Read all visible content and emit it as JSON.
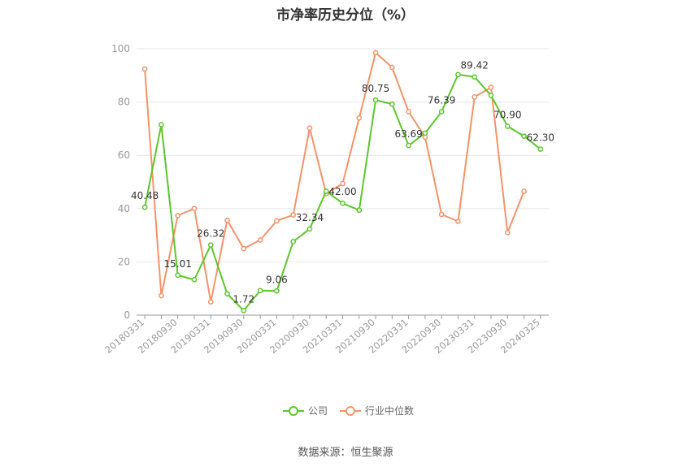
{
  "title": "市净率历史分位（%）",
  "source": "数据来源：恒生聚源",
  "colors": {
    "company": "#5cc72a",
    "industry": "#f5936a",
    "grid": "#e6e6e6",
    "axis": "#999999"
  },
  "chart_data": {
    "type": "line",
    "ylim": [
      0,
      100
    ],
    "yticks": [
      "0",
      "20",
      "40",
      "60",
      "80",
      "100"
    ],
    "x_tick_labels": [
      "20180331",
      "20180930",
      "20190331",
      "20190930",
      "20200331",
      "20200930",
      "20210331",
      "20210930",
      "20220331",
      "20220930",
      "20230331",
      "20230930",
      "20240325"
    ],
    "x": [
      "20180331",
      "20180630",
      "20180930",
      "20181231",
      "20190331",
      "20190630",
      "20190930",
      "20191231",
      "20200331",
      "20200630",
      "20200930",
      "20201231",
      "20210331",
      "20210630",
      "20210930",
      "20211231",
      "20220331",
      "20220630",
      "20220930",
      "20221231",
      "20230331",
      "20230630",
      "20230930",
      "20231231",
      "20240325"
    ],
    "legend": [
      "公司",
      "行业中位数"
    ],
    "series": [
      {
        "name": "公司",
        "values": [
          40.48,
          71.5,
          15.01,
          13.3,
          26.32,
          8.0,
          1.72,
          9.2,
          9.06,
          27.6,
          32.34,
          46.5,
          42.0,
          39.4,
          80.75,
          79.2,
          63.69,
          68.3,
          76.39,
          90.3,
          89.42,
          82.5,
          70.9,
          67.2,
          62.3
        ],
        "labels": {
          "0": "40.48",
          "2": "15.01",
          "4": "26.32",
          "6": "1.72",
          "8": "9.06",
          "10": "32.34",
          "12": "42.00",
          "14": "80.75",
          "16": "63.69",
          "18": "76.39",
          "20": "89.42",
          "22": "70.90",
          "24": "62.30"
        }
      },
      {
        "name": "行业中位数",
        "values": [
          92.4,
          7.3,
          37.4,
          40.0,
          5.0,
          35.6,
          25.0,
          28.2,
          35.4,
          37.6,
          70.2,
          45.6,
          49.4,
          74.0,
          98.5,
          93.0,
          76.4,
          66.8,
          37.8,
          35.2,
          81.9,
          85.5,
          31.0,
          46.5,
          null
        ]
      }
    ]
  }
}
